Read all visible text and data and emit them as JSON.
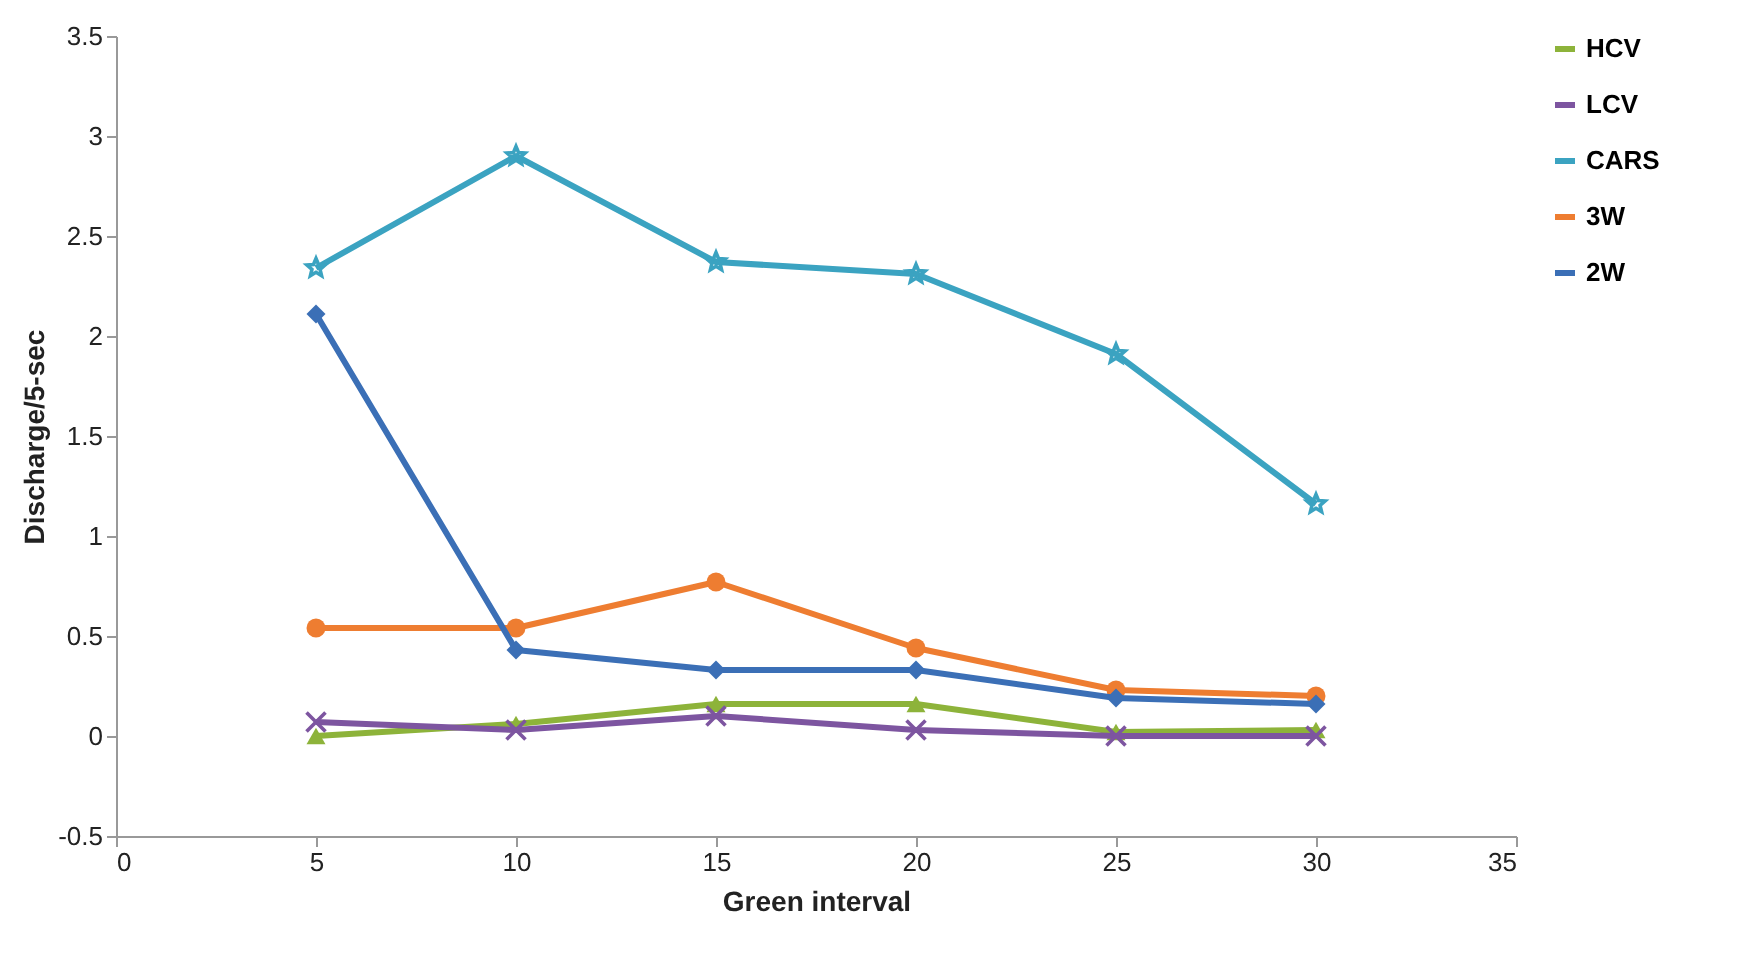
{
  "chart_data": {
    "type": "line",
    "xlabel": "Green interval",
    "ylabel": "Discharge/5-sec",
    "x": [
      5,
      10,
      15,
      20,
      25,
      30
    ],
    "xlim": [
      0,
      35
    ],
    "xticks": [
      0,
      5,
      10,
      15,
      20,
      25,
      30,
      35
    ],
    "ylim": [
      -0.5,
      3.5
    ],
    "yticks": [
      -0.5,
      {
        "value": 0,
        "label": "0"
      },
      0.5,
      {
        "value": 1,
        "label": "1"
      },
      1.5,
      {
        "value": 2,
        "label": "2"
      },
      2.5,
      {
        "value": 3,
        "label": "3"
      },
      3.5
    ],
    "grid": false,
    "legend": "right",
    "series": [
      {
        "name": "HCV",
        "color": "#8db33a",
        "marker": "triangle",
        "values": [
          0,
          0.06,
          0.16,
          0.16,
          0.02,
          0.03
        ]
      },
      {
        "name": "LCV",
        "color": "#7d55a0",
        "marker": "cross",
        "values": [
          0.07,
          0.03,
          0.1,
          0.03,
          0,
          0
        ]
      },
      {
        "name": "CARS",
        "color": "#3ba3c1",
        "marker": "star",
        "values": [
          2.34,
          2.9,
          2.37,
          2.31,
          1.91,
          1.16
        ]
      },
      {
        "name": "3W",
        "color": "#ee7d31",
        "marker": "circle",
        "values": [
          0.54,
          0.54,
          0.77,
          0.44,
          0.23,
          0.2
        ]
      },
      {
        "name": "2W",
        "color": "#3b6fb6",
        "marker": "diamond",
        "values": [
          2.11,
          0.43,
          0.33,
          0.33,
          0.19,
          0.16
        ]
      }
    ]
  }
}
